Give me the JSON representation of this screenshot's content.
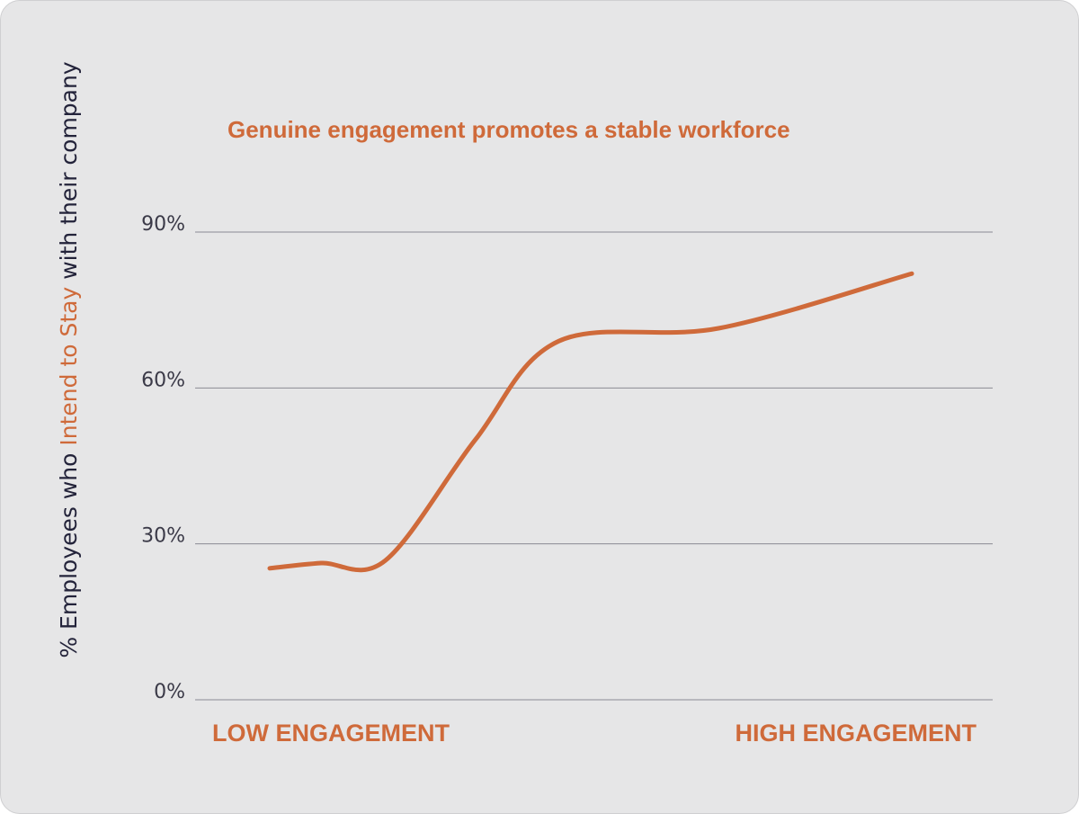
{
  "chart_data": {
    "type": "line",
    "title": "Genuine engagement promotes a stable workforce",
    "ylabel": {
      "before": "% Employees who ",
      "highlight": "Intend to Stay",
      "after": " with their company"
    },
    "xlabel": "",
    "x_categories": [
      "LOW ENGAGEMENT",
      "HIGH ENGAGEMENT"
    ],
    "yticks": [
      {
        "value": 0,
        "label": "0%"
      },
      {
        "value": 30,
        "label": "30%"
      },
      {
        "value": 60,
        "label": "60%"
      },
      {
        "value": 90,
        "label": "90%"
      }
    ],
    "ylim": [
      0,
      90
    ],
    "grid": true,
    "series": [
      {
        "color": "#cf6a3a",
        "points": [
          {
            "x": 0.0,
            "y": 25.3
          },
          {
            "x": 0.08,
            "y": 26.3
          },
          {
            "x": 0.18,
            "y": 26.8
          },
          {
            "x": 0.32,
            "y": 50.0
          },
          {
            "x": 0.45,
            "y": 69.0
          },
          {
            "x": 0.7,
            "y": 71.5
          },
          {
            "x": 1.0,
            "y": 82.0
          }
        ]
      }
    ]
  }
}
